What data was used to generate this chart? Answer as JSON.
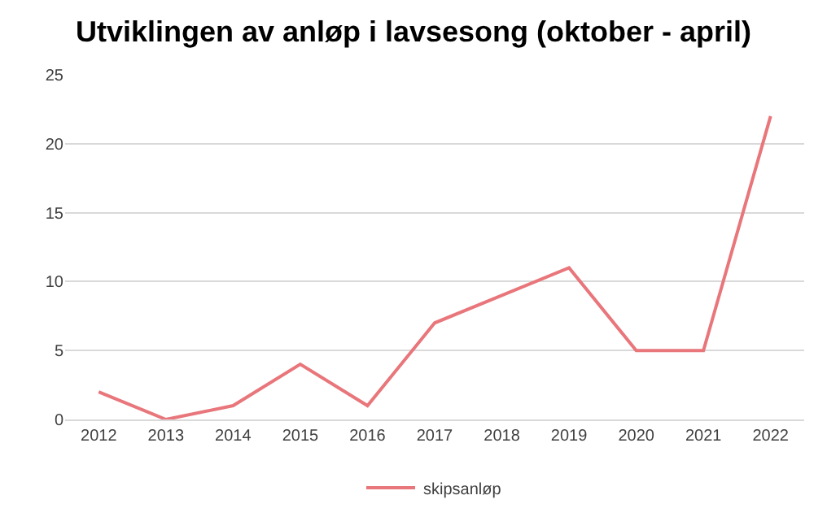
{
  "chart_data": {
    "type": "line",
    "title": "Utviklingen av anløp i lavsesong (oktober - april)",
    "categories": [
      "2012",
      "2013",
      "2014",
      "2015",
      "2016",
      "2017",
      "2018",
      "2019",
      "2020",
      "2021",
      "2022"
    ],
    "series": [
      {
        "name": "skipsanløp",
        "color": "#e8767b",
        "values": [
          2,
          0,
          1,
          4,
          1,
          7,
          9,
          11,
          5,
          5,
          22
        ]
      }
    ],
    "ylim": [
      0,
      25
    ],
    "yticks": [
      0,
      5,
      10,
      15,
      20,
      25
    ],
    "grid": "y",
    "legend": "bottom",
    "marker": "none",
    "line_style": "solid"
  }
}
